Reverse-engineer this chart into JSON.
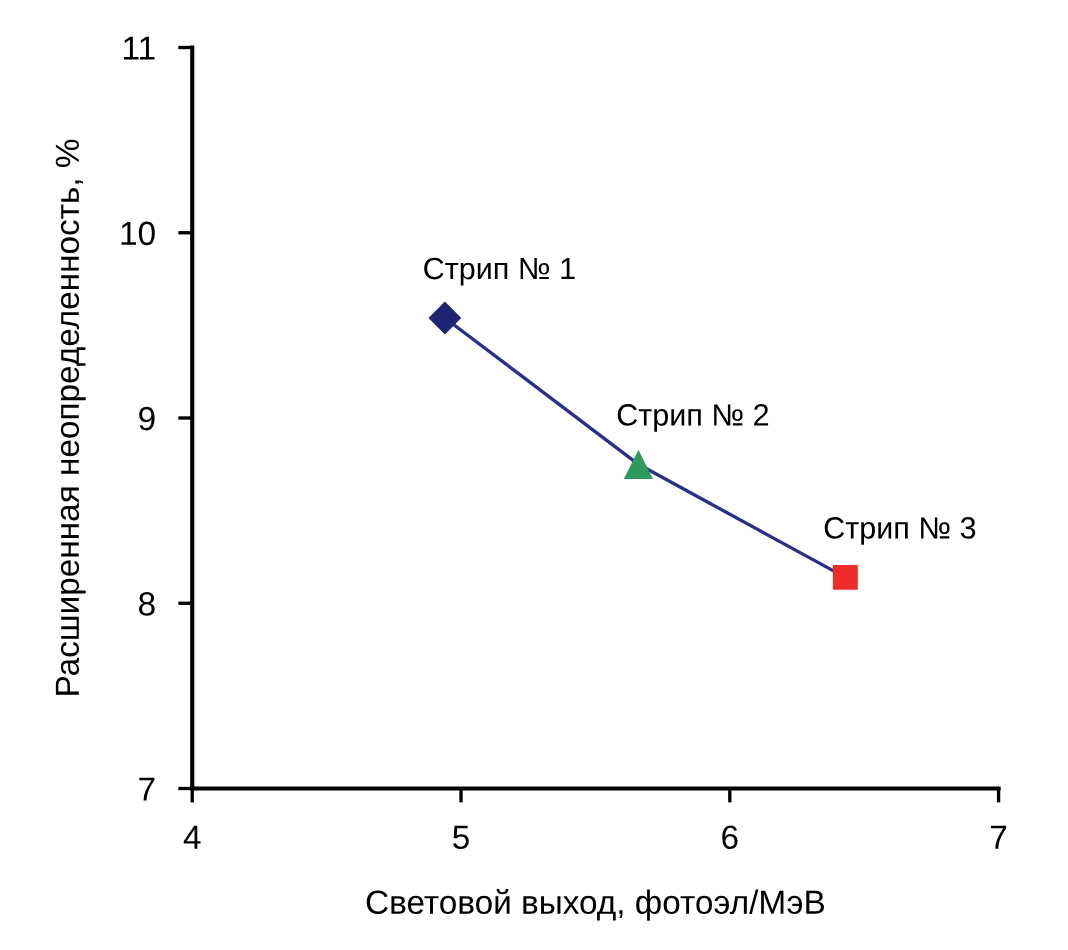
{
  "chart_data": {
    "type": "line",
    "xlabel": "Световой выход, фотоэл/МэВ",
    "ylabel": "Расширенная неопределенность, %",
    "xlim": [
      4,
      7
    ],
    "xticks": [
      4,
      5,
      6,
      7
    ],
    "ylim": [
      7,
      11
    ],
    "yticks": [
      7,
      8,
      9,
      10,
      11
    ],
    "grid": false,
    "legend": false,
    "series": [
      {
        "color": "#2b2f8a",
        "x": [
          4.94,
          5.66,
          6.43
        ],
        "values": [
          9.54,
          8.75,
          8.14
        ],
        "marker": "none",
        "line_style": "solid"
      },
      {
        "type": "scatter",
        "color": "#1f2473",
        "x": [
          4.94
        ],
        "values": [
          9.54
        ],
        "marker": "diamond"
      },
      {
        "type": "scatter",
        "color": "#2e9a5e",
        "x": [
          5.66
        ],
        "values": [
          8.75
        ],
        "marker": "triangle"
      },
      {
        "type": "scatter",
        "color": "#ee2a2a",
        "x": [
          6.43
        ],
        "values": [
          8.14
        ],
        "marker": "square"
      }
    ],
    "annotations": [
      {
        "text": "Стрип № 1",
        "x": 4.94,
        "y": 9.54
      },
      {
        "text": "Стрип № 2",
        "x": 5.66,
        "y": 8.75
      },
      {
        "text": "Стрип № 3",
        "x": 6.43,
        "y": 8.14
      }
    ]
  }
}
